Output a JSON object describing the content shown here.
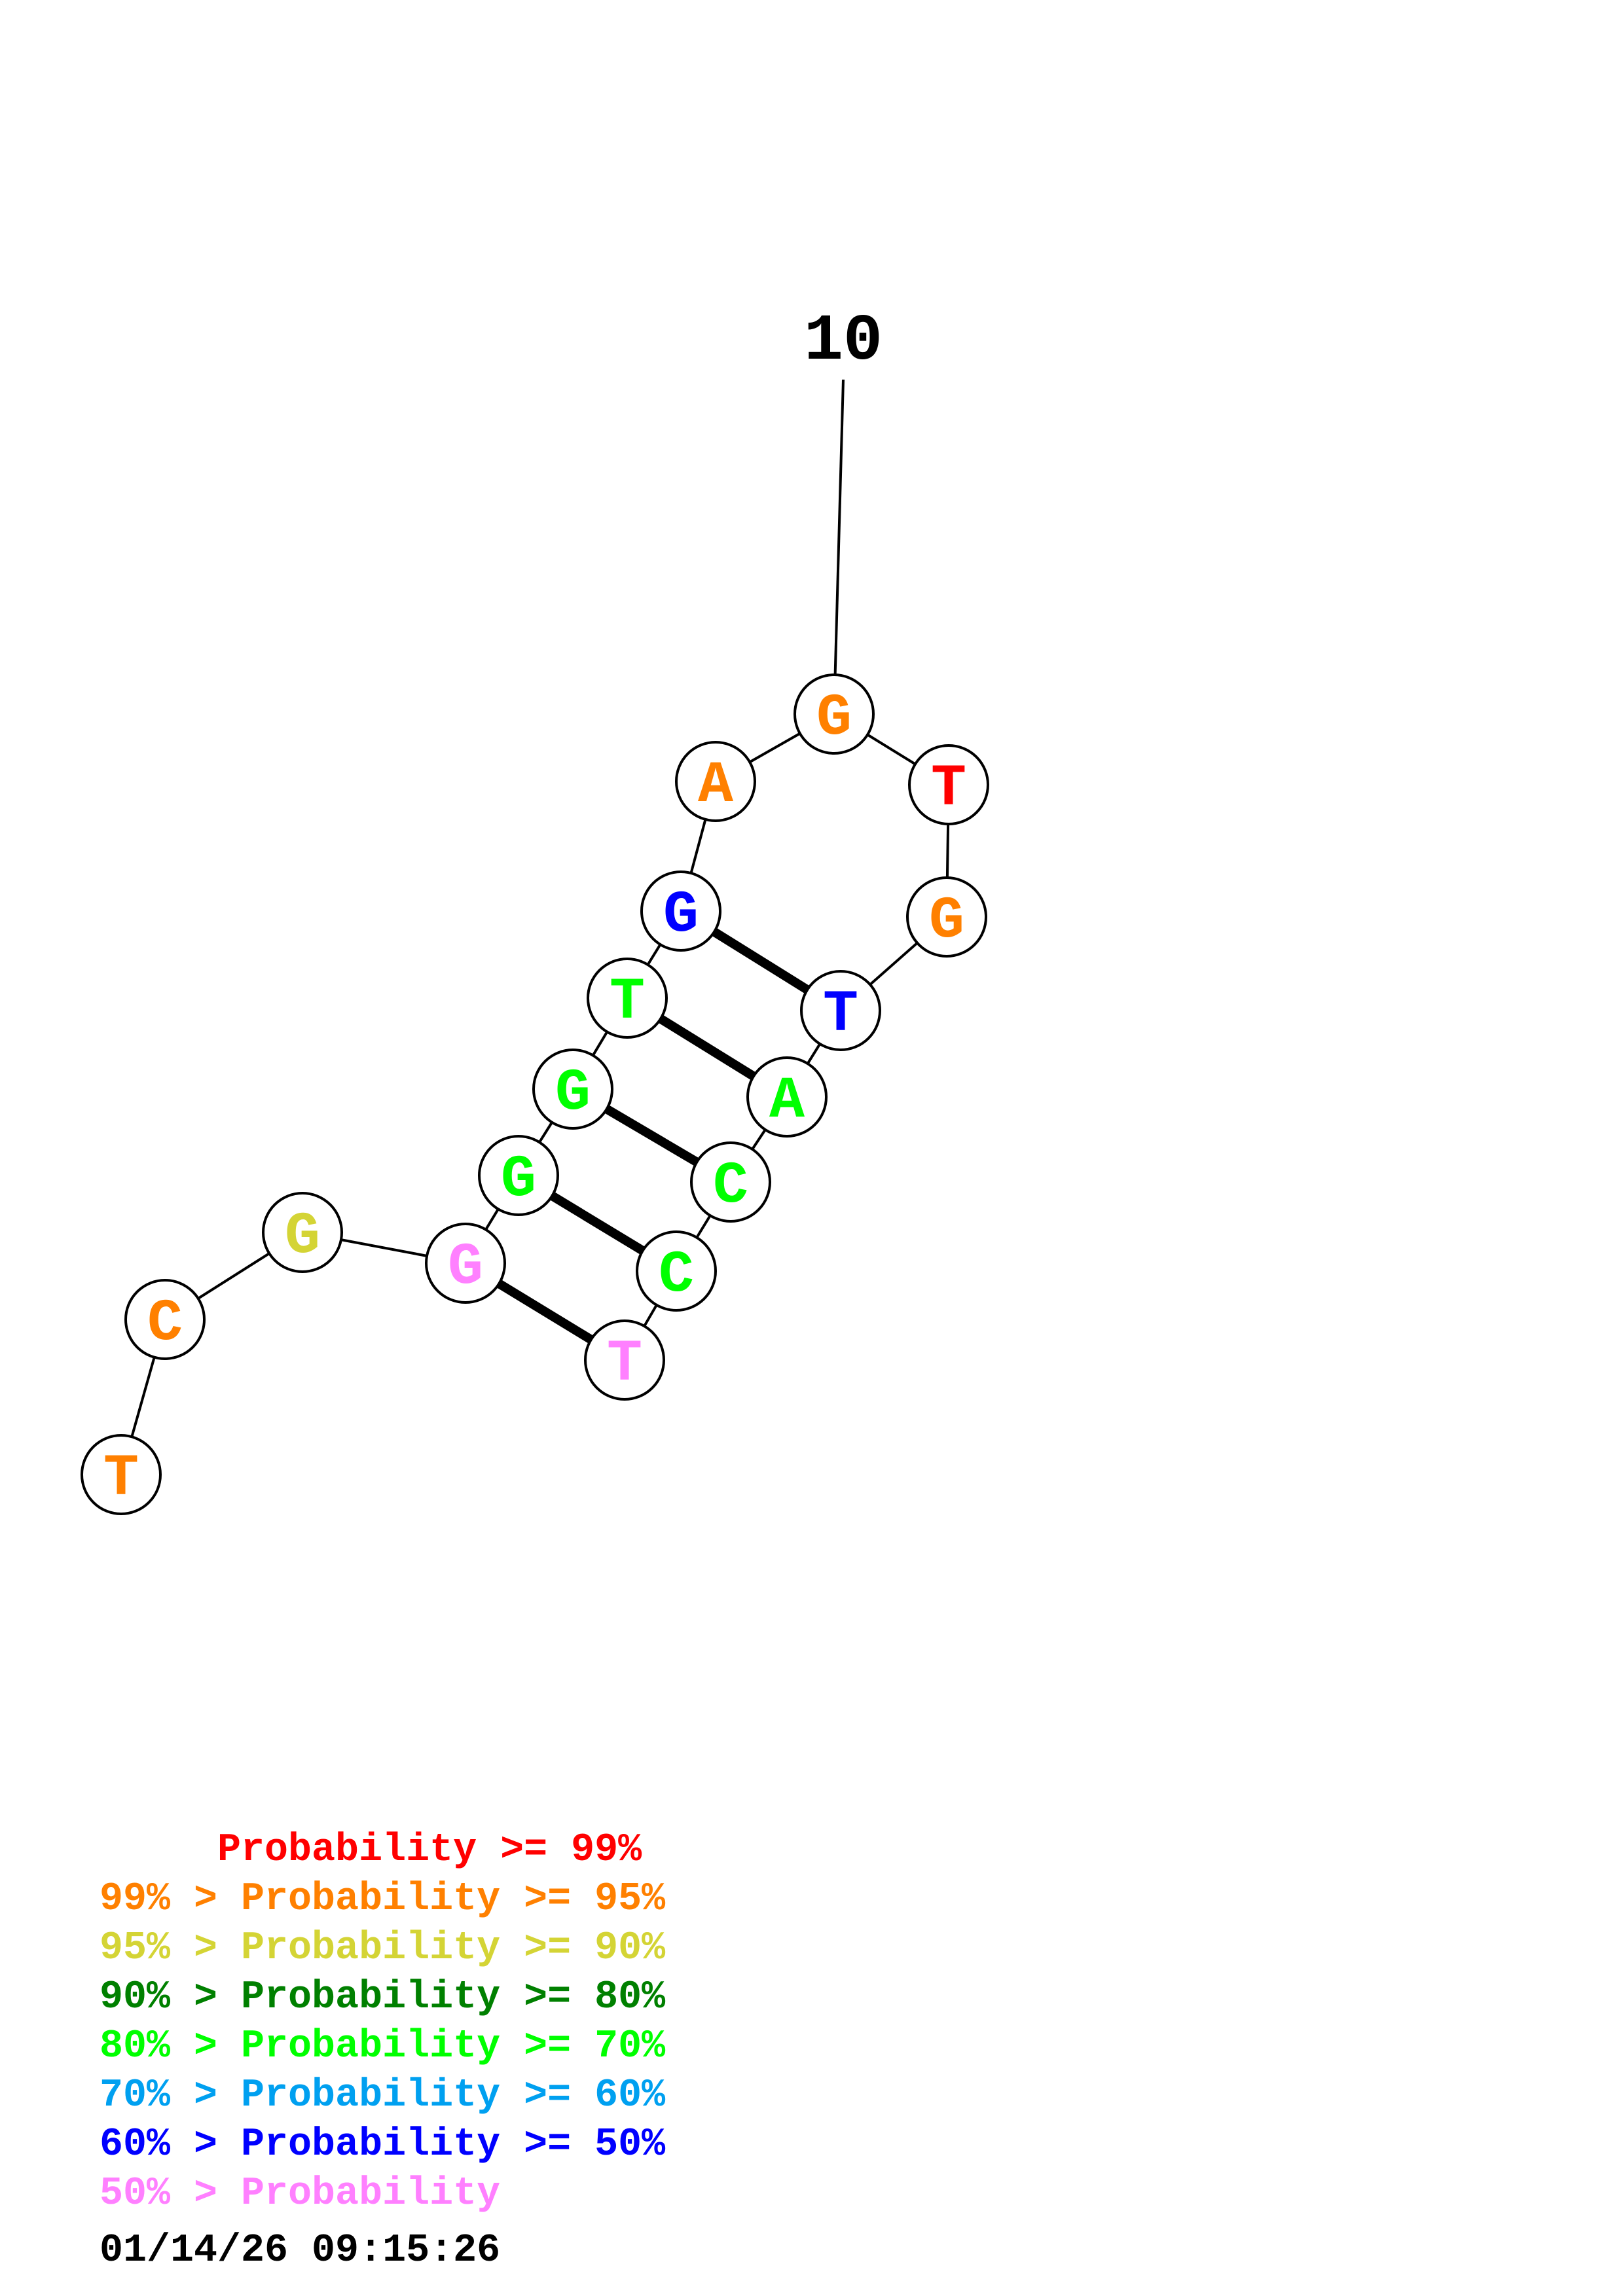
{
  "structure": {
    "position_label": "10",
    "nucleotides": [
      {
        "base": "T",
        "color": "#ff8000"
      },
      {
        "base": "C",
        "color": "#ff8000"
      },
      {
        "base": "G",
        "color": "#d4d435"
      },
      {
        "base": "G",
        "color": "#ff80ff"
      },
      {
        "base": "G",
        "color": "#00ff00"
      },
      {
        "base": "G",
        "color": "#00ff00"
      },
      {
        "base": "T",
        "color": "#00ff00"
      },
      {
        "base": "G",
        "color": "#0000ff"
      },
      {
        "base": "A",
        "color": "#ff8000"
      },
      {
        "base": "G",
        "color": "#ff8000"
      },
      {
        "base": "T",
        "color": "#ff0000"
      },
      {
        "base": "G",
        "color": "#ff8000"
      },
      {
        "base": "T",
        "color": "#0000ff"
      },
      {
        "base": "A",
        "color": "#00ff00"
      },
      {
        "base": "C",
        "color": "#00ff00"
      },
      {
        "base": "C",
        "color": "#00ff00"
      },
      {
        "base": "T",
        "color": "#ff80ff"
      }
    ],
    "base_pairs": [
      [
        4,
        17
      ],
      [
        5,
        16
      ],
      [
        6,
        15
      ],
      [
        7,
        14
      ],
      [
        8,
        13
      ]
    ]
  },
  "legend": [
    {
      "text": "     Probability >= 99%",
      "color": "#ff0000"
    },
    {
      "text": "99% > Probability >= 95%",
      "color": "#ff8000"
    },
    {
      "text": "95% > Probability >= 90%",
      "color": "#d4d435"
    },
    {
      "text": "90% > Probability >= 80%",
      "color": "#008000"
    },
    {
      "text": "80% > Probability >= 70%",
      "color": "#00ff00"
    },
    {
      "text": "70% > Probability >= 60%",
      "color": "#00a0f0"
    },
    {
      "text": "60% > Probability >= 50%",
      "color": "#0000ff"
    },
    {
      "text": "50% > Probability",
      "color": "#ff80ff"
    }
  ],
  "timestamp": "01/14/26 09:15:26"
}
